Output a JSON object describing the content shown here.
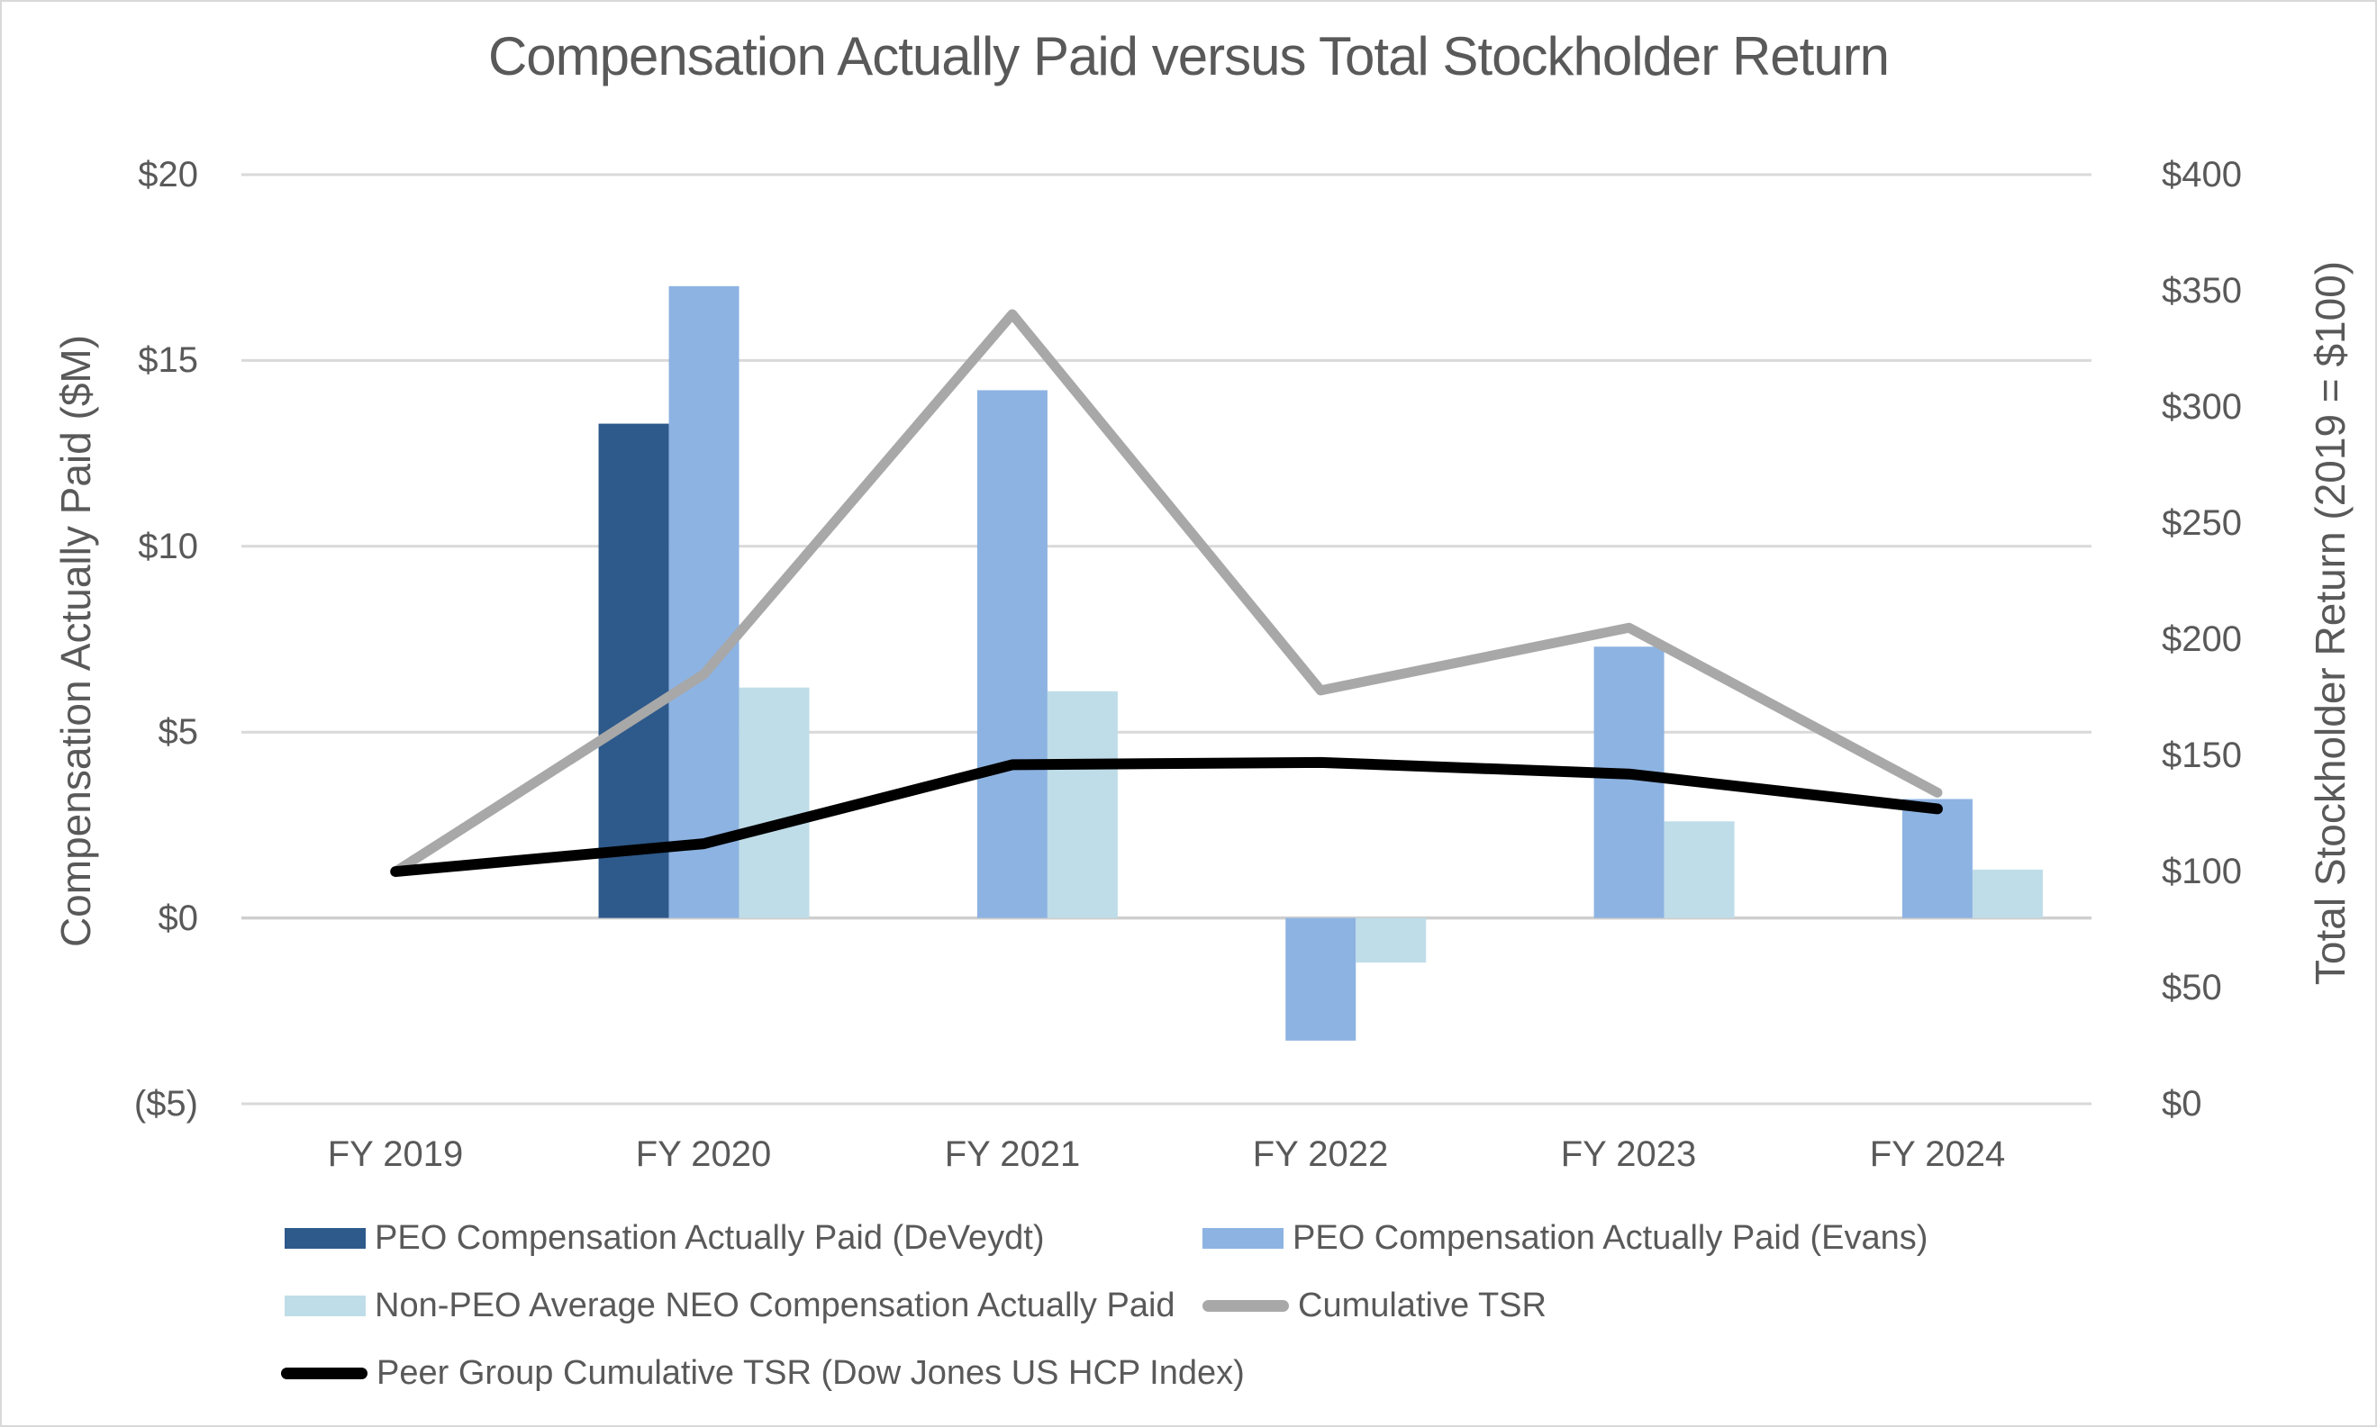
{
  "title": "Compensation Actually Paid versus Total Stockholder Return",
  "colors": {
    "text": "#595959",
    "grid": "#d9d9d9",
    "axis_line": "#cfcfcf",
    "background": "#ffffff",
    "border": "#d9d9d9",
    "peo_deveydt": "#2e598b",
    "peo_evans": "#8db3e2",
    "non_peo_neo": "#bfdde8",
    "cumulative_tsr": "#a8a8a8",
    "peer_group_tsr": "#000000"
  },
  "chart_data": {
    "type": "combo-bar-line",
    "categories": [
      "FY 2019",
      "FY 2020",
      "FY 2021",
      "FY 2022",
      "FY 2023",
      "FY 2024"
    ],
    "bar_series": [
      {
        "name": "PEO Compensation Actually Paid (DeVeydt)",
        "color": "#2e598b",
        "axis": "left",
        "values": [
          null,
          13.3,
          null,
          null,
          null,
          null
        ]
      },
      {
        "name": "PEO Compensation Actually Paid (Evans)",
        "color": "#8db3e2",
        "axis": "left",
        "values": [
          null,
          17.0,
          14.2,
          -3.3,
          7.3,
          3.2
        ]
      },
      {
        "name": "Non-PEO Average NEO Compensation Actually Paid",
        "color": "#bfdde8",
        "axis": "left",
        "values": [
          null,
          6.2,
          6.1,
          -1.2,
          2.6,
          1.3
        ]
      }
    ],
    "line_series": [
      {
        "name": "Cumulative TSR",
        "color": "#a8a8a8",
        "axis": "right",
        "stroke_width": 11,
        "values": [
          100,
          185,
          340,
          178,
          205,
          134
        ]
      },
      {
        "name": "Peer Group Cumulative TSR (Dow Jones US HCP Index)",
        "color": "#000000",
        "axis": "right",
        "stroke_width": 12,
        "values": [
          100,
          112,
          146,
          147,
          142,
          127
        ]
      }
    ],
    "left_axis": {
      "label": "Compensation Actually Paid ($M)",
      "ticks": [
        "$20",
        "$15",
        "$10",
        "$5",
        "$0",
        "($5)"
      ],
      "tick_values": [
        20,
        15,
        10,
        5,
        0,
        -5
      ],
      "range": [
        -5,
        20
      ]
    },
    "right_axis": {
      "label": "Total Stockholder Return (2019 = $100)",
      "ticks": [
        "$400",
        "$350",
        "$300",
        "$250",
        "$200",
        "$150",
        "$100",
        "$50",
        "$0"
      ],
      "tick_values": [
        400,
        350,
        300,
        250,
        200,
        150,
        100,
        50,
        0
      ],
      "range": [
        0,
        400
      ]
    },
    "grid": "horizontal",
    "legend_position": "bottom"
  },
  "legend": {
    "items": [
      {
        "label": "PEO Compensation Actually Paid (DeVeydt)",
        "swatch": "bar",
        "color": "#2e598b"
      },
      {
        "label": "PEO Compensation Actually Paid (Evans)",
        "swatch": "bar",
        "color": "#8db3e2"
      },
      {
        "label": "Non-PEO Average NEO Compensation Actually Paid",
        "swatch": "bar",
        "color": "#bfdde8"
      },
      {
        "label": "Cumulative TSR",
        "swatch": "line",
        "color": "#a8a8a8"
      },
      {
        "label": "Peer Group Cumulative TSR (Dow Jones US HCP Index)",
        "swatch": "line",
        "color": "#000000"
      }
    ]
  }
}
